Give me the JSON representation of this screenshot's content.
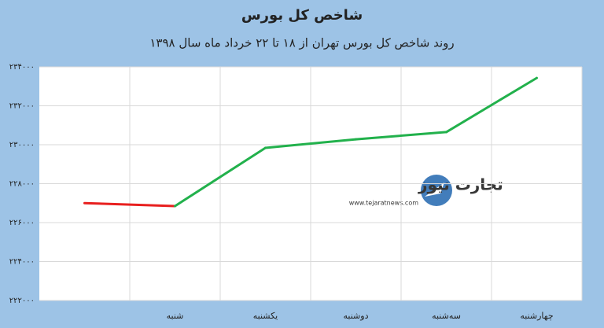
{
  "chart_data": {
    "type": "line",
    "title": "شاخص کل بورس",
    "subtitle": "روند شاخص کل بورس تهران از ۱۸ تا ۲۲ خرداد ماه سال ۱۳۹۸",
    "categories": [
      null,
      "شنبه",
      "یکشنبه",
      "دوشنبه",
      "سه‌شنبه",
      "چهارشنبه"
    ],
    "series": [
      {
        "values": [
          227000,
          226850,
          229840,
          230280,
          230650,
          233430
        ],
        "up_color": "#22b14c",
        "down_color": "#e8201f"
      }
    ],
    "ylim": [
      222000,
      234000
    ],
    "yticks": [
      {
        "value": 222000,
        "label": "۲۲۲۰۰۰"
      },
      {
        "value": 224000,
        "label": "۲۲۴۰۰۰"
      },
      {
        "value": 226000,
        "label": "۲۲۶۰۰۰"
      },
      {
        "value": 228000,
        "label": "۲۲۸۰۰۰"
      },
      {
        "value": 230000,
        "label": "۲۳۰۰۰۰"
      },
      {
        "value": 232000,
        "label": "۲۳۲۰۰۰"
      },
      {
        "value": 234000,
        "label": "۲۳۴۰۰۰"
      }
    ],
    "grid": true,
    "watermark": {
      "name": "تجارت نیوز",
      "url": "www.tejaratnews.com"
    }
  }
}
